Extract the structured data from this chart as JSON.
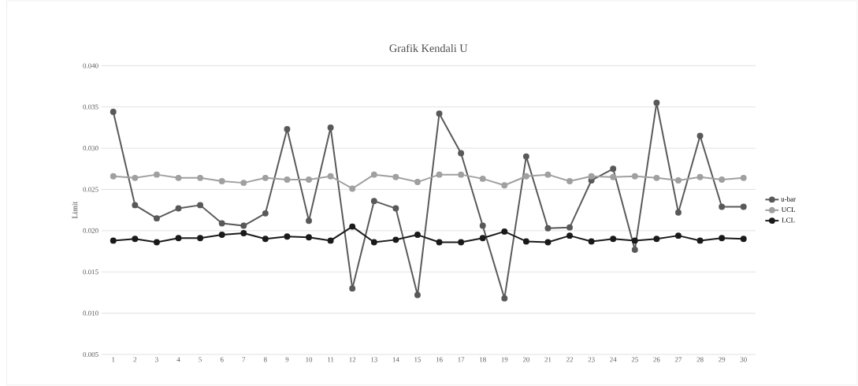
{
  "chart_data": {
    "type": "line",
    "title": "Grafik Kendali U",
    "ylabel": "Limit",
    "categories": [
      "1",
      "2",
      "3",
      "4",
      "5",
      "6",
      "7",
      "8",
      "9",
      "10",
      "11",
      "12",
      "13",
      "14",
      "15",
      "16",
      "17",
      "18",
      "19",
      "20",
      "21",
      "22",
      "23",
      "24",
      "25",
      "26",
      "27",
      "28",
      "29",
      "30"
    ],
    "series": [
      {
        "name": "u-bar",
        "color": "#595959",
        "values": [
          0.0344,
          0.0231,
          0.0215,
          0.0227,
          0.0231,
          0.0209,
          0.0206,
          0.0221,
          0.0323,
          0.0212,
          0.0325,
          0.013,
          0.0236,
          0.0227,
          0.0122,
          0.0342,
          0.0294,
          0.0206,
          0.0118,
          0.029,
          0.0203,
          0.0204,
          0.0261,
          0.0275,
          0.0177,
          0.0355,
          0.0222,
          0.0315,
          0.0229,
          0.0229
        ]
      },
      {
        "name": "UCL",
        "color": "#a0a0a0",
        "values": [
          0.0266,
          0.0264,
          0.0268,
          0.0264,
          0.0264,
          0.026,
          0.0258,
          0.0264,
          0.0262,
          0.0262,
          0.0266,
          0.0251,
          0.0268,
          0.0265,
          0.0259,
          0.0268,
          0.0268,
          0.0263,
          0.0255,
          0.0266,
          0.0268,
          0.026,
          0.0266,
          0.0265,
          0.0266,
          0.0264,
          0.0261,
          0.0265,
          0.0262,
          0.0264
        ]
      },
      {
        "name": "LCL",
        "color": "#1a1a1a",
        "values": [
          0.0188,
          0.019,
          0.0186,
          0.0191,
          0.0191,
          0.0195,
          0.0197,
          0.019,
          0.0193,
          0.0192,
          0.0188,
          0.0205,
          0.0186,
          0.0189,
          0.0195,
          0.0186,
          0.0186,
          0.0191,
          0.0199,
          0.0187,
          0.0186,
          0.0194,
          0.0187,
          0.019,
          0.0188,
          0.019,
          0.0194,
          0.0188,
          0.0191,
          0.019
        ]
      }
    ],
    "ylim": [
      0.005,
      0.04
    ],
    "yticks": [
      {
        "value": 0.005,
        "label": "0.005"
      },
      {
        "value": 0.01,
        "label": "0.010"
      },
      {
        "value": 0.015,
        "label": "0.015"
      },
      {
        "value": 0.02,
        "label": "0.020"
      },
      {
        "value": 0.025,
        "label": "0.025"
      },
      {
        "value": 0.03,
        "label": "0.030"
      },
      {
        "value": 0.035,
        "label": "0.035"
      },
      {
        "value": 0.04,
        "label": "0.040"
      }
    ],
    "grid": "y",
    "legend": "right",
    "marker": "circle",
    "line_style": "solid"
  }
}
